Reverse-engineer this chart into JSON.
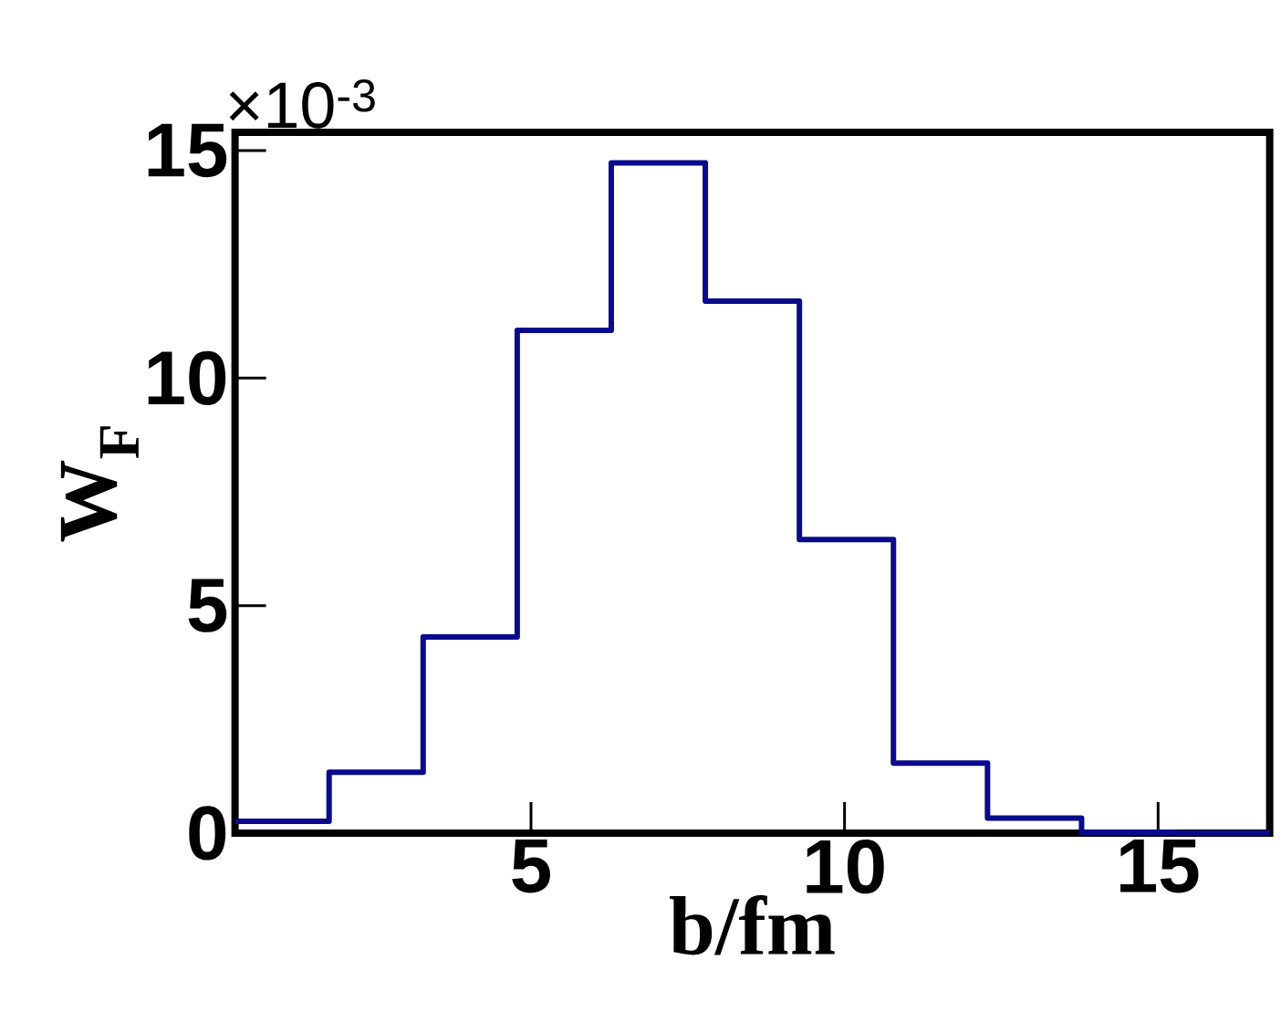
{
  "chart_data": {
    "type": "histogram",
    "xlabel": "b/fm",
    "ylabel": "W$_{F}$",
    "annotations": [
      "×10$^{-3}$"
    ],
    "bins": [
      0.28,
      1.78,
      3.28,
      4.78,
      6.28,
      7.78,
      9.28,
      10.78,
      12.28,
      13.78,
      15.28,
      16.78
    ],
    "values": [
      0.26,
      1.34,
      4.31,
      11.05,
      14.73,
      11.69,
      6.45,
      1.54,
      0.33,
      0.02,
      0
    ],
    "color": "#0a0a8c",
    "xlim": [
      0.28,
      16.78
    ],
    "ylim": [
      0,
      15.4
    ],
    "xticks": [
      5,
      10,
      15
    ],
    "yticks": [
      0,
      5,
      10,
      15
    ]
  }
}
